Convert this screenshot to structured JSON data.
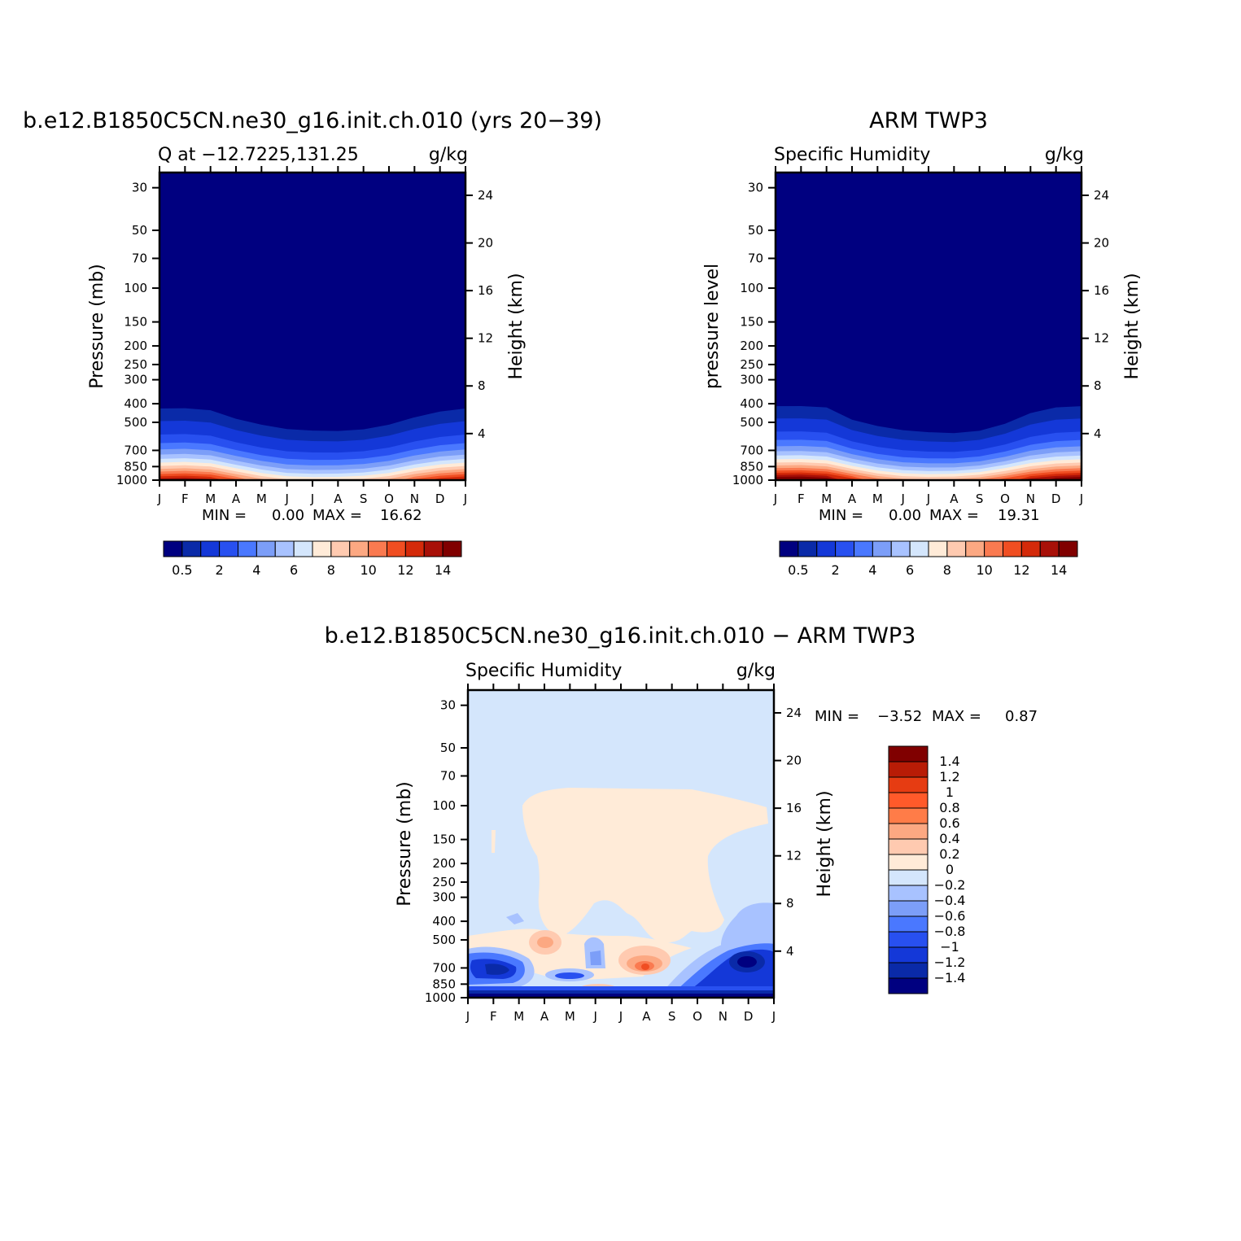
{
  "chart_data": [
    {
      "type": "heatmap",
      "title": "b.e12.B1850C5CN.ne30_g16.init.ch.010 (yrs 20−39)",
      "subtitle_left": "Q at −12.7225,131.25",
      "subtitle_right": "g/kg",
      "ylabel": "Pressure (mb)",
      "ylabel_right": "Height (km)",
      "x": [
        "J",
        "F",
        "M",
        "A",
        "M",
        "J",
        "J",
        "A",
        "S",
        "O",
        "N",
        "D",
        "J"
      ],
      "y_ticks": [
        "30",
        "50",
        "70",
        "100",
        "150",
        "200",
        "250",
        "300",
        "400",
        "500",
        "700",
        "850",
        "1000"
      ],
      "y2_ticks": [
        "24",
        "20",
        "16",
        "12",
        "8",
        "4"
      ],
      "ylim": [
        1000,
        25
      ],
      "y_scale": "log",
      "stats": {
        "min_label": "MIN =",
        "min": "0.00",
        "max_label": "MAX =",
        "max": "16.62"
      },
      "colorbar": {
        "orientation": "horizontal",
        "tick_labels": [
          "0.5",
          "2",
          "4",
          "6",
          "8",
          "10",
          "12",
          "14"
        ]
      },
      "surface_q": [
        13.8,
        14.2,
        13.6,
        11.5,
        9.5,
        8.3,
        8.0,
        8.1,
        8.5,
        9.5,
        11.5,
        13.0,
        13.8
      ],
      "moist_top_hPa": [
        300,
        300,
        310,
        355,
        385,
        410,
        420,
        425,
        415,
        385,
        345,
        315,
        300
      ]
    },
    {
      "type": "heatmap",
      "title": "ARM TWP3",
      "subtitle_left": "Specific Humidity",
      "subtitle_right": "g/kg",
      "ylabel": "pressure level",
      "ylabel_right": "Height (km)",
      "x": [
        "J",
        "F",
        "M",
        "A",
        "M",
        "J",
        "J",
        "A",
        "S",
        "O",
        "N",
        "D",
        "J"
      ],
      "y_ticks": [
        "30",
        "50",
        "70",
        "100",
        "150",
        "200",
        "250",
        "300",
        "400",
        "500",
        "700",
        "850",
        "1000"
      ],
      "y2_ticks": [
        "24",
        "20",
        "16",
        "12",
        "8",
        "4"
      ],
      "ylim": [
        1000,
        25
      ],
      "y_scale": "log",
      "stats": {
        "min_label": "MIN =",
        "min": "0.00",
        "max_label": "MAX =",
        "max": "19.31"
      },
      "colorbar": {
        "orientation": "horizontal",
        "tick_labels": [
          "0.5",
          "2",
          "4",
          "6",
          "8",
          "10",
          "12",
          "14"
        ]
      },
      "surface_q": [
        15.8,
        16.0,
        15.3,
        13.0,
        10.8,
        9.6,
        9.3,
        9.5,
        10.3,
        12.0,
        14.0,
        15.2,
        15.8
      ],
      "moist_top_hPa": [
        295,
        295,
        300,
        370,
        405,
        430,
        445,
        455,
        440,
        395,
        330,
        300,
        295
      ]
    },
    {
      "type": "heatmap",
      "title": "b.e12.B1850C5CN.ne30_g16.init.ch.010 − ARM TWP3",
      "subtitle_left": "Specific Humidity",
      "subtitle_right": "g/kg",
      "ylabel": "Pressure (mb)",
      "ylabel_right": "Height (km)",
      "x": [
        "J",
        "F",
        "M",
        "A",
        "M",
        "J",
        "J",
        "A",
        "S",
        "O",
        "N",
        "D",
        "J"
      ],
      "y_ticks": [
        "30",
        "50",
        "70",
        "100",
        "150",
        "200",
        "250",
        "300",
        "400",
        "500",
        "700",
        "850",
        "1000"
      ],
      "y2_ticks": [
        "24",
        "20",
        "16",
        "12",
        "8",
        "4"
      ],
      "ylim": [
        1000,
        25
      ],
      "y_scale": "log",
      "stats": {
        "min_label": "MIN =",
        "min": "−3.52",
        "max_label": "MAX =",
        "max": "0.87"
      },
      "colorbar": {
        "orientation": "vertical",
        "tick_labels": [
          "1.4",
          "1.2",
          "1",
          "0.8",
          "0.6",
          "0.4",
          "0.2",
          "0",
          "−0.2",
          "−0.4",
          "−0.6",
          "−0.8",
          "−1",
          "−1.2",
          "−1.4"
        ]
      }
    }
  ],
  "colors": {
    "positive_scale": [
      "#000080",
      "#0a2aa8",
      "#1438d8",
      "#2850f0",
      "#4a78ff",
      "#7c9ef8",
      "#a8c2ff",
      "#d4e6fc",
      "#ffebd8",
      "#ffcab0",
      "#fca882",
      "#fa7a50",
      "#f04e22",
      "#d42a0a",
      "#a81008",
      "#800000"
    ],
    "difference_scale": [
      "#800000",
      "#b81c06",
      "#e63c12",
      "#ff5a2a",
      "#ff7c48",
      "#fca882",
      "#ffcab0",
      "#ffebd8",
      "#d4e6fc",
      "#a8c2ff",
      "#7c9ef8",
      "#4a78ff",
      "#2850f0",
      "#1438d8",
      "#0a2aa8",
      "#000080"
    ]
  }
}
